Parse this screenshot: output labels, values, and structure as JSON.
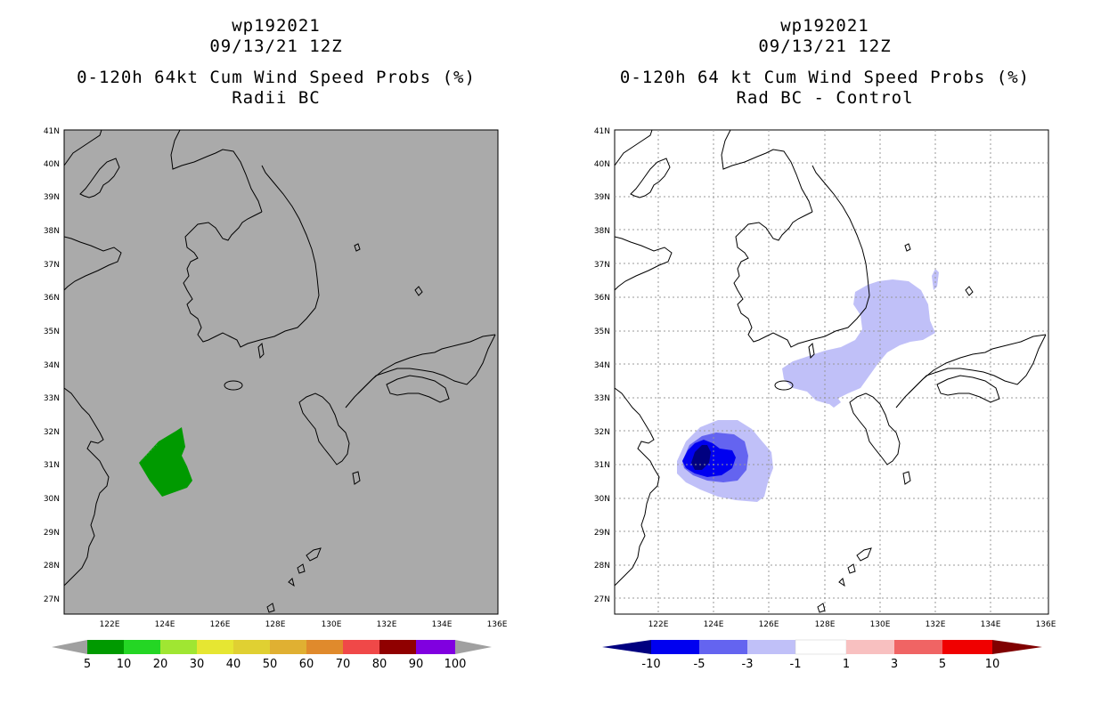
{
  "left_panel": {
    "title_lines": [
      "wp192021",
      "09/13/21 12Z",
      "0-120h 64kt Cum Wind Speed Probs (%)",
      "Radii BC"
    ],
    "colorbar": {
      "labels": [
        "5",
        "10",
        "20",
        "30",
        "40",
        "50",
        "60",
        "70",
        "80",
        "90",
        "100"
      ],
      "colors": [
        "#009a00",
        "#24d624",
        "#a0e632",
        "#e6e632",
        "#e0d032",
        "#e0b032",
        "#e08a2c",
        "#f04848",
        "#900000",
        "#8000e0"
      ]
    },
    "probability_region": {
      "value_range": "5-10",
      "color": "#009a00"
    }
  },
  "right_panel": {
    "title_lines": [
      "wp192021",
      "09/13/21 12Z",
      "0-120h 64 kt Cum Wind Speed Probs (%)",
      "Rad BC - Control"
    ],
    "colorbar": {
      "labels": [
        "-10",
        "-5",
        "-3",
        "-1",
        "1",
        "3",
        "5",
        "10"
      ],
      "colors": [
        "#000080",
        "#0000f0",
        "#6464f0",
        "#c0c0f8",
        "#ffffff",
        "#f8c0c0",
        "#f06464",
        "#f00000",
        "#800000"
      ]
    }
  },
  "axes": {
    "lat_labels": [
      "41N",
      "40N",
      "39N",
      "38N",
      "37N",
      "36N",
      "35N",
      "34N",
      "33N",
      "32N",
      "31N",
      "30N",
      "29N",
      "28N",
      "27N"
    ],
    "lon_labels": [
      "122E",
      "124E",
      "126E",
      "128E",
      "130E",
      "132E",
      "134E",
      "136E"
    ]
  }
}
